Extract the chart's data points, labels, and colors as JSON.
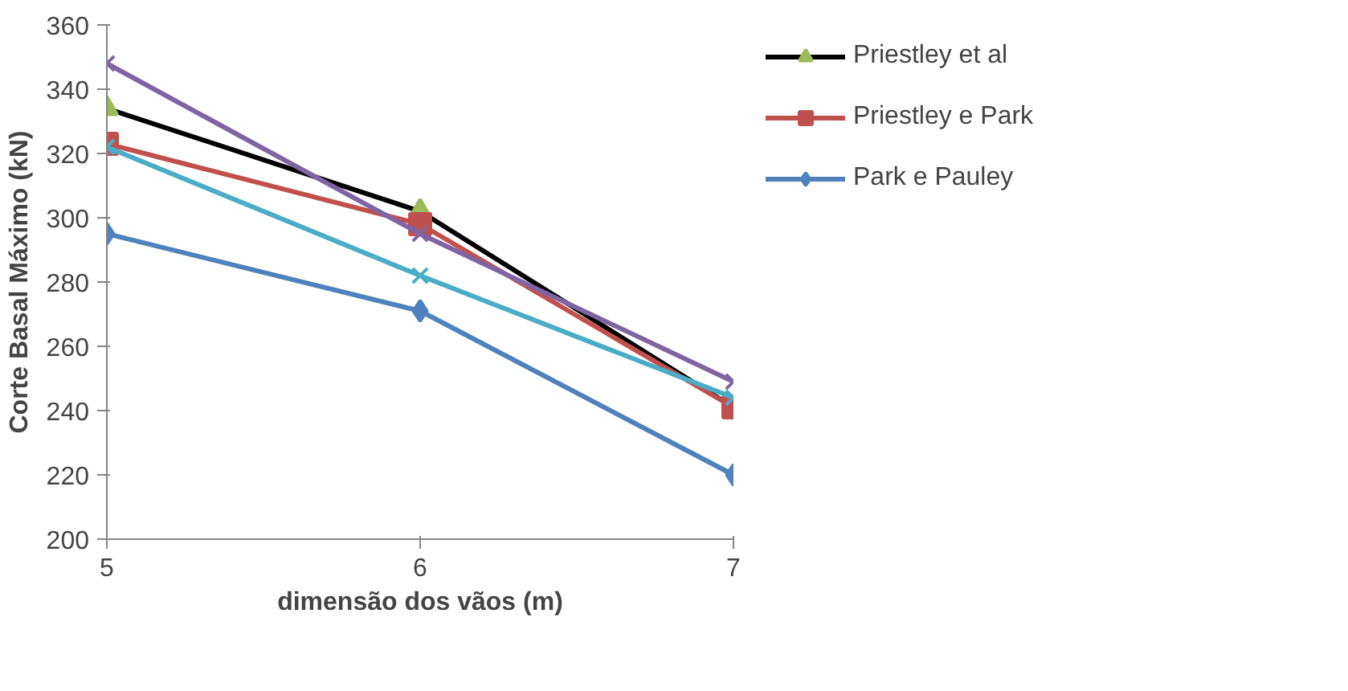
{
  "chart_data": {
    "type": "line",
    "xlabel": "dimensão dos vãos (m)",
    "ylabel": "Corte Basal Máximo (kN)",
    "x": [
      5,
      6,
      7
    ],
    "xlim": [
      5,
      7
    ],
    "xticks": [
      5,
      6,
      7
    ],
    "ylim": [
      200,
      360
    ],
    "yticks": [
      200,
      220,
      240,
      260,
      280,
      300,
      320,
      340,
      360
    ],
    "grid": false,
    "legend": "right",
    "series": [
      {
        "name": "Priestley et al",
        "color": "#000000",
        "colors": [
          "#9bbb59",
          "#9bbb59",
          "#9bbb59"
        ],
        "marker": "triangle",
        "values": [
          334,
          302,
          241
        ]
      },
      {
        "name": "Priestley e Park",
        "color": "#c0504d",
        "marker": "square",
        "values": [
          323,
          298,
          241
        ]
      },
      {
        "name": "Park e Pauley",
        "color": "#4f81bd",
        "marker": "diamond",
        "values": [
          295,
          271,
          220
        ]
      },
      {
        "color": "#8064a2",
        "marker": "cross",
        "values": [
          348,
          295,
          249
        ]
      },
      {
        "color": "#4bacc6",
        "marker": "cross",
        "values": [
          322,
          282,
          244
        ]
      }
    ]
  }
}
